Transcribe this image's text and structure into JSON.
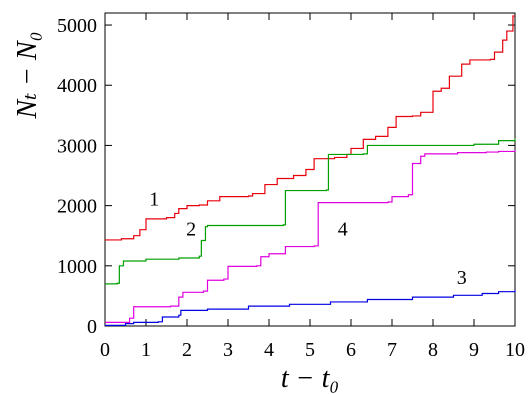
{
  "chart_data": {
    "type": "line",
    "xlabel": "t − t₀",
    "ylabel": "Nₜ − N₀",
    "xlim": [
      0,
      10
    ],
    "ylim": [
      0,
      5200
    ],
    "x_ticks": [
      0,
      1,
      2,
      3,
      4,
      5,
      6,
      7,
      8,
      9,
      10
    ],
    "y_ticks": [
      0,
      1000,
      2000,
      3000,
      4000,
      5000
    ],
    "x_tick_labels": [
      "0",
      "1",
      "2",
      "3",
      "4",
      "5",
      "6",
      "7",
      "8",
      "9",
      "10"
    ],
    "y_tick_labels": [
      "0",
      "1000",
      "2000",
      "3000",
      "4000",
      "5000"
    ],
    "grid": false,
    "series": [
      {
        "name": "1",
        "color": "#e8000b",
        "points": [
          [
            0,
            1430
          ],
          [
            0.4,
            1450
          ],
          [
            0.7,
            1500
          ],
          [
            0.85,
            1600
          ],
          [
            1.0,
            1780
          ],
          [
            1.5,
            1800
          ],
          [
            1.7,
            1870
          ],
          [
            1.8,
            1950
          ],
          [
            2.0,
            2000
          ],
          [
            2.3,
            2010
          ],
          [
            2.5,
            2080
          ],
          [
            2.8,
            2150
          ],
          [
            3.5,
            2160
          ],
          [
            3.6,
            2200
          ],
          [
            3.9,
            2350
          ],
          [
            4.2,
            2450
          ],
          [
            4.6,
            2500
          ],
          [
            4.9,
            2600
          ],
          [
            5.1,
            2780
          ],
          [
            5.6,
            2800
          ],
          [
            5.9,
            2850
          ],
          [
            6.0,
            2950
          ],
          [
            6.3,
            3100
          ],
          [
            6.6,
            3150
          ],
          [
            6.9,
            3300
          ],
          [
            7.1,
            3480
          ],
          [
            7.5,
            3490
          ],
          [
            7.7,
            3550
          ],
          [
            8.0,
            3900
          ],
          [
            8.2,
            3950
          ],
          [
            8.4,
            4150
          ],
          [
            8.7,
            4350
          ],
          [
            8.9,
            4420
          ],
          [
            9.4,
            4430
          ],
          [
            9.5,
            4550
          ],
          [
            9.7,
            4750
          ],
          [
            9.8,
            4900
          ],
          [
            9.95,
            5150
          ],
          [
            10.0,
            5150
          ]
        ]
      },
      {
        "name": "2",
        "color": "#00a000",
        "points": [
          [
            0,
            700
          ],
          [
            0.3,
            710
          ],
          [
            0.35,
            1000
          ],
          [
            0.45,
            1080
          ],
          [
            1.0,
            1110
          ],
          [
            1.8,
            1130
          ],
          [
            2.3,
            1160
          ],
          [
            2.35,
            1420
          ],
          [
            2.45,
            1650
          ],
          [
            2.5,
            1670
          ],
          [
            4.35,
            1680
          ],
          [
            4.4,
            2250
          ],
          [
            5.4,
            2260
          ],
          [
            5.45,
            2850
          ],
          [
            6.3,
            2860
          ],
          [
            6.4,
            3000
          ],
          [
            9.0,
            3020
          ],
          [
            9.6,
            3080
          ],
          [
            10.0,
            3120
          ]
        ]
      },
      {
        "name": "3",
        "color": "#0000e0",
        "points": [
          [
            0,
            10
          ],
          [
            0.5,
            40
          ],
          [
            0.7,
            60
          ],
          [
            1.3,
            70
          ],
          [
            1.4,
            150
          ],
          [
            1.8,
            180
          ],
          [
            1.85,
            260
          ],
          [
            2.5,
            280
          ],
          [
            3.5,
            330
          ],
          [
            4.5,
            360
          ],
          [
            5.5,
            400
          ],
          [
            6.4,
            440
          ],
          [
            7.5,
            480
          ],
          [
            8.5,
            510
          ],
          [
            9.2,
            540
          ],
          [
            9.6,
            570
          ],
          [
            10.0,
            600
          ]
        ]
      },
      {
        "name": "4",
        "color": "#e000e0",
        "points": [
          [
            0,
            60
          ],
          [
            0.5,
            60
          ],
          [
            0.6,
            130
          ],
          [
            0.7,
            320
          ],
          [
            1.6,
            330
          ],
          [
            1.8,
            480
          ],
          [
            1.9,
            560
          ],
          [
            2.4,
            580
          ],
          [
            2.5,
            760
          ],
          [
            2.9,
            780
          ],
          [
            3.0,
            990
          ],
          [
            3.7,
            1000
          ],
          [
            3.8,
            1150
          ],
          [
            4.0,
            1200
          ],
          [
            4.4,
            1320
          ],
          [
            5.1,
            1330
          ],
          [
            5.2,
            2050
          ],
          [
            6.9,
            2060
          ],
          [
            7.0,
            2150
          ],
          [
            7.4,
            2180
          ],
          [
            7.5,
            2700
          ],
          [
            7.7,
            2820
          ],
          [
            7.8,
            2860
          ],
          [
            8.6,
            2880
          ],
          [
            9.3,
            2890
          ],
          [
            9.6,
            2900
          ],
          [
            10.0,
            2920
          ]
        ]
      }
    ],
    "series_label_positions": [
      {
        "series": "1",
        "x": 1.2,
        "y": 2000
      },
      {
        "series": "2",
        "x": 2.1,
        "y": 1500
      },
      {
        "series": "3",
        "x": 8.7,
        "y": 700
      },
      {
        "series": "4",
        "x": 5.8,
        "y": 1500
      }
    ]
  }
}
